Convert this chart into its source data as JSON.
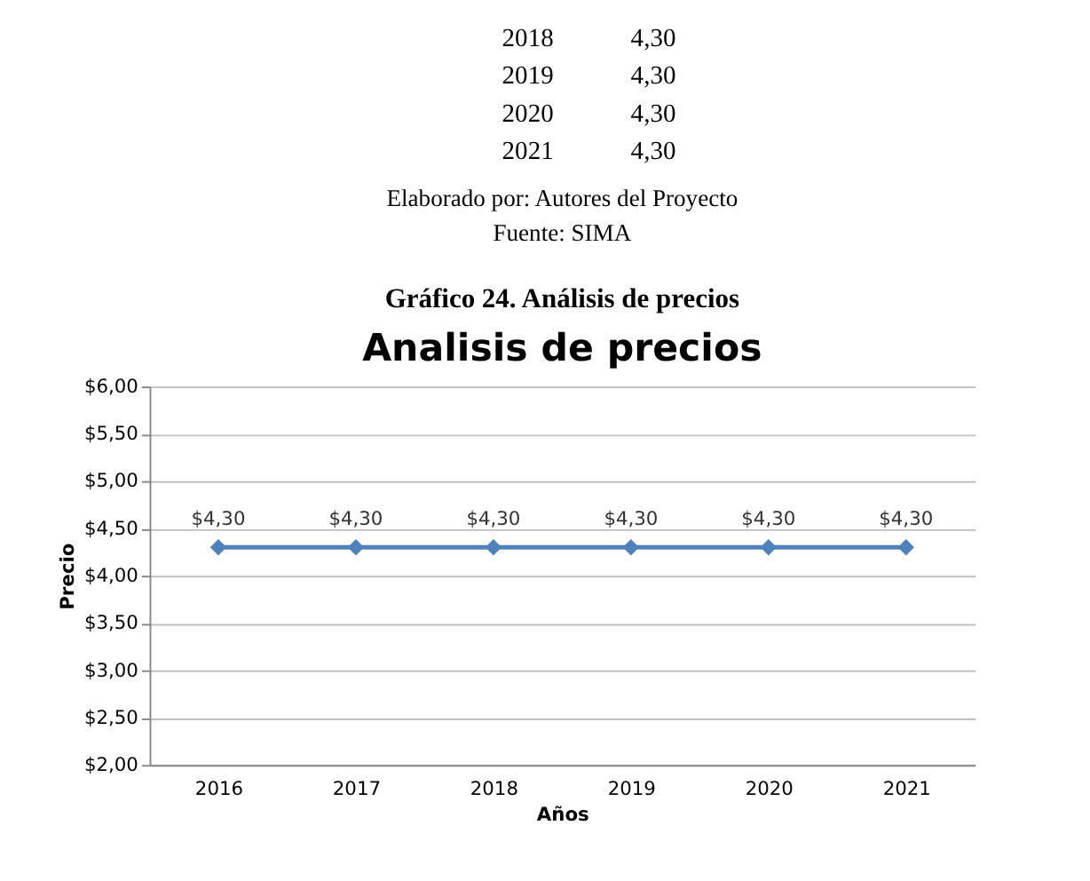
{
  "chart_data": {
    "type": "line",
    "title": "Analisis de precios",
    "xlabel": "Años",
    "ylabel": "Precio",
    "categories": [
      "2016",
      "2017",
      "2018",
      "2019",
      "2020",
      "2021"
    ],
    "series": [
      {
        "color": "#4f81bd",
        "values": [
          4.3,
          4.3,
          4.3,
          4.3,
          4.3,
          4.3
        ],
        "value_labels": [
          "$4,30",
          "$4,30",
          "$4,30",
          "$4,30",
          "$4,30",
          "$4,30"
        ]
      }
    ],
    "ylim": [
      2,
      6
    ],
    "yticks": [
      {
        "value": 2,
        "label": "$2,00"
      },
      {
        "value": 2.5,
        "label": "$2,50"
      },
      {
        "value": 3,
        "label": "$3,00"
      },
      {
        "value": 3.5,
        "label": "$3,50"
      },
      {
        "value": 4,
        "label": "$4,00"
      },
      {
        "value": 4.5,
        "label": "$4,50"
      },
      {
        "value": 5,
        "label": "$5,00"
      },
      {
        "value": 5.5,
        "label": "$5,50"
      },
      {
        "value": 6,
        "label": "$6,00"
      }
    ],
    "grid": "y",
    "marker": "diamond",
    "line_style": "solid",
    "annotations": [
      "2018",
      "4,30",
      "2019",
      "4,30",
      "2020",
      "4,30",
      "2021",
      "4,30",
      "Elaborado por: Autores del Proyecto",
      "Fuente: SIMA",
      "Gráfico 24. Análisis de precios"
    ]
  }
}
